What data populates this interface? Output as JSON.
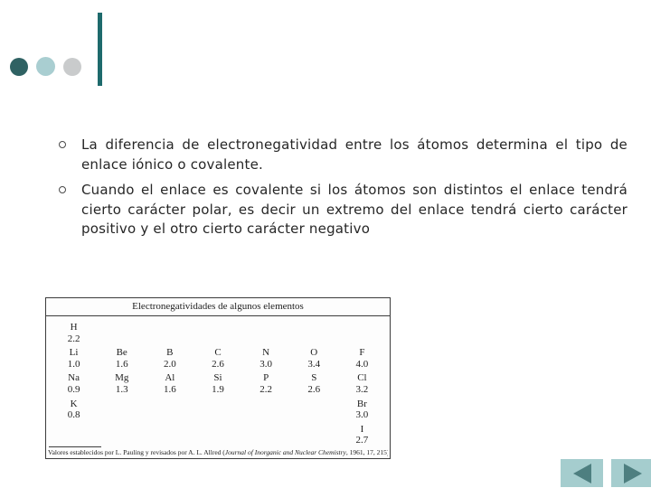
{
  "slide": {
    "bullets": [
      "La diferencia de electronegatividad entre los átomos determina el tipo de enlace iónico o covalente.",
      "Cuando el enlace es covalente si los átomos son distintos el enlace tendrá cierto carácter polar, es decir un extremo del enlace tendrá cierto carácter positivo y el otro cierto carácter negativo"
    ]
  },
  "table": {
    "title": "Electronegatividades de algunos elementos",
    "rows": [
      {
        "cells": [
          {
            "s": "H",
            "v": "2.2"
          },
          {
            "s": "",
            "v": ""
          },
          {
            "s": "",
            "v": ""
          },
          {
            "s": "",
            "v": ""
          },
          {
            "s": "",
            "v": ""
          },
          {
            "s": "",
            "v": ""
          },
          {
            "s": "",
            "v": ""
          }
        ]
      },
      {
        "cells": [
          {
            "s": "Li",
            "v": "1.0"
          },
          {
            "s": "Be",
            "v": "1.6"
          },
          {
            "s": "B",
            "v": "2.0"
          },
          {
            "s": "C",
            "v": "2.6"
          },
          {
            "s": "N",
            "v": "3.0"
          },
          {
            "s": "O",
            "v": "3.4"
          },
          {
            "s": "F",
            "v": "4.0"
          }
        ]
      },
      {
        "cells": [
          {
            "s": "Na",
            "v": "0.9"
          },
          {
            "s": "Mg",
            "v": "1.3"
          },
          {
            "s": "Al",
            "v": "1.6"
          },
          {
            "s": "Si",
            "v": "1.9"
          },
          {
            "s": "P",
            "v": "2.2"
          },
          {
            "s": "S",
            "v": "2.6"
          },
          {
            "s": "Cl",
            "v": "3.2"
          }
        ]
      },
      {
        "cells": [
          {
            "s": "K",
            "v": "0.8"
          },
          {
            "s": "",
            "v": ""
          },
          {
            "s": "",
            "v": ""
          },
          {
            "s": "",
            "v": ""
          },
          {
            "s": "",
            "v": ""
          },
          {
            "s": "",
            "v": ""
          },
          {
            "s": "Br",
            "v": "3.0"
          }
        ]
      },
      {
        "cells": [
          {
            "s": "",
            "v": ""
          },
          {
            "s": "",
            "v": ""
          },
          {
            "s": "",
            "v": ""
          },
          {
            "s": "",
            "v": ""
          },
          {
            "s": "",
            "v": ""
          },
          {
            "s": "",
            "v": ""
          },
          {
            "s": "I",
            "v": "2.7"
          }
        ]
      }
    ],
    "footnote": {
      "prefix": "Valores establecidos por L. Pauling y revisados por A. L. Allred (",
      "journal": "Journal of Inorganic and Nuclear Chemistry",
      "suffix": ", 1961, 17, 215)."
    }
  },
  "nav": {
    "back_icon": "left-triangle",
    "forward_icon": "right-triangle"
  },
  "colors": {
    "accent_dark_teal": "#1e6a6c",
    "circle_dark": "#2f6263",
    "circle_light_teal": "#a9ced1",
    "circle_gray": "#c9cbcc",
    "button_bg": "#a5cdce",
    "button_arrow": "#4e7f80",
    "text": "#262626"
  }
}
